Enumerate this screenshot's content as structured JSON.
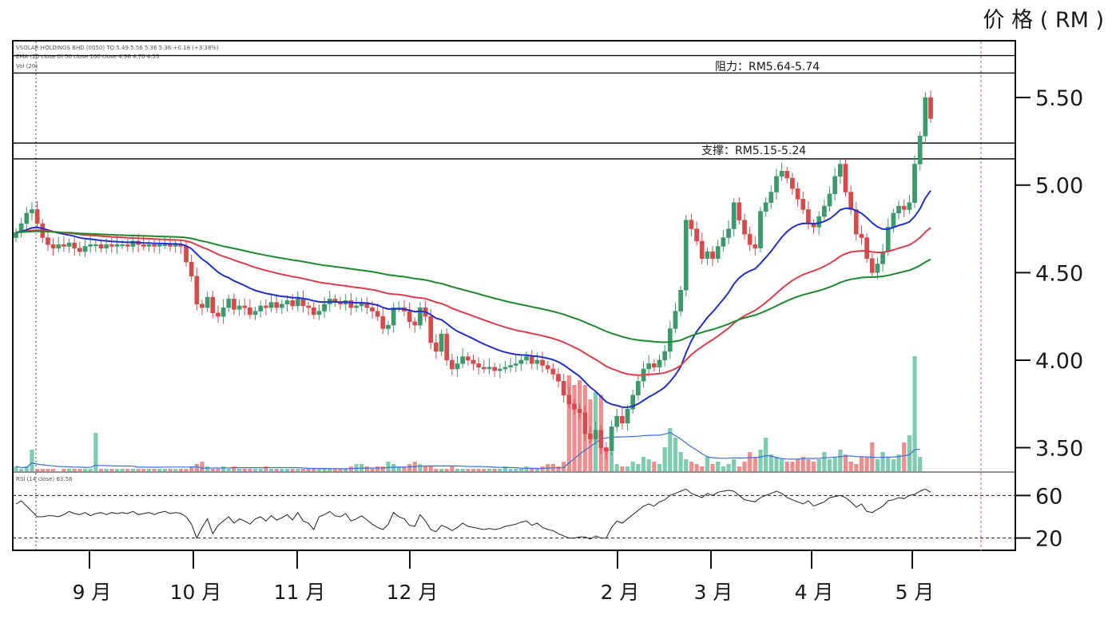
{
  "colors": {
    "up": "#3a9a6c",
    "down": "#d84a4a",
    "ma_fast": "#1f2fd0",
    "ma_mid": "#e23b4a",
    "ma_slow": "#1b8a2a",
    "vol_up": "#7ccbb3",
    "vol_down": "#ef8e8e",
    "vol_ma": "#3b6fd8",
    "rsi": "#222222",
    "frame": "#111111"
  },
  "chart_data": {
    "type": "candlestick",
    "y_unit_label": "价 格 ( RM )",
    "ylim": [
      3.32,
      5.82
    ],
    "y_ticks": [
      {
        "v": 5.5,
        "label": "5.50"
      },
      {
        "v": 5.0,
        "label": "5.00"
      },
      {
        "v": 4.5,
        "label": "4.50"
      },
      {
        "v": 4.0,
        "label": "4.00"
      },
      {
        "v": 3.5,
        "label": "3.50"
      }
    ],
    "rsi_ticks": [
      {
        "v": 60,
        "label": "60"
      },
      {
        "v": 20,
        "label": "20"
      }
    ],
    "rsi_range": [
      10,
      70
    ],
    "months": [
      "9 月",
      "10 月",
      "11 月",
      "12 月",
      "2 月",
      "3 月",
      "4 月",
      "5 月"
    ],
    "month_positions": [
      0.12,
      0.295,
      0.39,
      0.515,
      0.715,
      0.84,
      0.935,
      1.0
    ],
    "annotations": {
      "resistance": {
        "text": "阻力：RM5.64-5.74",
        "low": 5.64,
        "high": 5.74
      },
      "support": {
        "text": "支撑：RM5.15-5.24",
        "low": 5.15,
        "high": 5.24
      }
    },
    "header_lines": [
      "VSOLAR HOLDINGS BHD (0050) TO 5.49 5.56 5.36 5.36 +0.18 (+3.38%)",
      "EMA (20 close 0) 50 close 100 close 4.96 4.70 4.53",
      "Vol (20)"
    ],
    "rsi_header": "RSI (14 close) 63.58",
    "price_series": [
      4.73,
      4.78,
      4.84,
      4.86,
      4.78,
      4.7,
      4.66,
      4.64,
      4.66,
      4.65,
      4.67,
      4.64,
      4.62,
      4.65,
      4.66,
      4.66,
      4.64,
      4.66,
      4.65,
      4.66,
      4.66,
      4.65,
      4.68,
      4.66,
      4.65,
      4.66,
      4.65,
      4.66,
      4.66,
      4.65,
      4.66,
      4.65,
      4.56,
      4.48,
      4.32,
      4.3,
      4.36,
      4.27,
      4.25,
      4.3,
      4.35,
      4.29,
      4.31,
      4.3,
      4.26,
      4.28,
      4.31,
      4.3,
      4.33,
      4.3,
      4.32,
      4.34,
      4.31,
      4.35,
      4.31,
      4.3,
      4.26,
      4.28,
      4.32,
      4.35,
      4.33,
      4.32,
      4.34,
      4.3,
      4.31,
      4.33,
      4.3,
      4.28,
      4.25,
      4.18,
      4.2,
      4.3,
      4.3,
      4.28,
      4.22,
      4.2,
      4.3,
      4.25,
      4.1,
      4.05,
      4.15,
      4.0,
      3.95,
      3.98,
      4.02,
      4.0,
      3.98,
      3.96,
      3.95,
      3.96,
      3.94,
      3.95,
      3.96,
      3.97,
      3.98,
      4.0,
      4.02,
      3.98,
      4.0,
      3.97,
      3.95,
      3.92,
      3.88,
      3.8,
      3.75,
      3.72,
      3.7,
      3.58,
      3.55,
      3.6,
      3.5,
      3.48,
      3.62,
      3.68,
      3.64,
      3.72,
      3.8,
      3.88,
      3.95,
      3.98,
      3.96,
      4.0,
      4.05,
      4.18,
      4.28,
      4.4,
      4.8,
      4.75,
      4.68,
      4.58,
      4.62,
      4.58,
      4.65,
      4.7,
      4.75,
      4.9,
      4.8,
      4.72,
      4.66,
      4.64,
      4.85,
      4.9,
      4.96,
      5.05,
      5.08,
      5.04,
      4.98,
      4.92,
      4.86,
      4.78,
      4.76,
      4.82,
      4.88,
      4.95,
      5.05,
      5.12,
      4.96,
      4.86,
      4.72,
      4.7,
      4.58,
      4.5,
      4.55,
      4.62,
      4.76,
      4.84,
      4.88,
      4.86,
      4.9,
      5.12,
      5.28,
      5.5,
      5.38
    ],
    "volume_series": [
      2,
      1,
      2,
      9,
      1,
      1,
      1,
      1,
      0,
      1,
      1,
      1,
      1,
      1,
      1,
      16,
      1,
      1,
      1,
      1,
      1,
      1,
      1,
      1,
      1,
      1,
      1,
      1,
      1,
      1,
      1,
      1,
      1,
      2,
      3,
      4,
      2,
      1,
      1,
      2,
      1,
      2,
      1,
      1,
      1,
      1,
      1,
      2,
      1,
      1,
      1,
      1,
      1,
      1,
      1,
      1,
      1,
      1,
      1,
      1,
      1,
      1,
      1,
      2,
      3,
      3,
      2,
      1,
      2,
      2,
      4,
      3,
      2,
      2,
      3,
      4,
      3,
      2,
      2,
      1,
      1,
      1,
      2,
      1,
      1,
      1,
      1,
      1,
      1,
      1,
      1,
      1,
      2,
      1,
      1,
      1,
      2,
      1,
      1,
      2,
      3,
      3,
      2,
      4,
      40,
      36,
      38,
      36,
      30,
      33,
      32,
      10,
      8,
      3,
      2,
      2,
      4,
      3,
      6,
      5,
      4,
      3,
      10,
      18,
      14,
      8,
      5,
      4,
      3,
      2,
      6,
      3,
      4,
      2,
      3,
      5,
      2,
      4,
      8,
      6,
      9,
      14,
      7,
      6,
      5,
      4,
      4,
      5,
      6,
      5,
      4,
      5,
      8,
      5,
      6,
      9,
      7,
      4,
      3,
      6,
      6,
      12,
      5,
      8,
      6,
      5,
      7,
      12,
      15,
      48,
      6
    ],
    "rsi_series": [
      52,
      55,
      50,
      45,
      40,
      40,
      41,
      41,
      40,
      42,
      45,
      43,
      42,
      44,
      41,
      43,
      44,
      42,
      44,
      43,
      44,
      43,
      45,
      42,
      43,
      44,
      42,
      44,
      45,
      43,
      44,
      43,
      40,
      33,
      20,
      30,
      38,
      24,
      32,
      36,
      40,
      34,
      38,
      36,
      33,
      38,
      40,
      36,
      41,
      37,
      39,
      42,
      37,
      44,
      36,
      34,
      28,
      40,
      42,
      45,
      41,
      40,
      43,
      36,
      38,
      41,
      37,
      33,
      30,
      28,
      33,
      44,
      40,
      38,
      32,
      31,
      42,
      36,
      28,
      26,
      32,
      30,
      27,
      30,
      34,
      31,
      30,
      29,
      28,
      29,
      28,
      29,
      31,
      32,
      33,
      35,
      36,
      32,
      34,
      30,
      28,
      27,
      24,
      22,
      20,
      20,
      21,
      21,
      19,
      22,
      20,
      20,
      30,
      36,
      34,
      38,
      42,
      46,
      50,
      52,
      50,
      54,
      56,
      60,
      62,
      64,
      66,
      62,
      60,
      58,
      62,
      60,
      63,
      64,
      65,
      64,
      60,
      56,
      55,
      54,
      58,
      60,
      62,
      64,
      62,
      58,
      56,
      54,
      52,
      55,
      50,
      52,
      54,
      58,
      59,
      60,
      58,
      54,
      49,
      52,
      45,
      44,
      47,
      50,
      55,
      56,
      58,
      57,
      60,
      61,
      64,
      66,
      63
    ]
  }
}
